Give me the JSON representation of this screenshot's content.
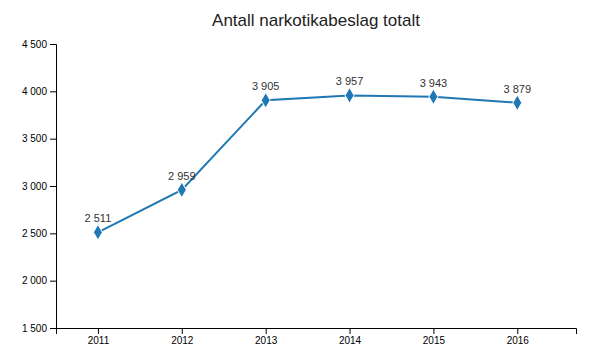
{
  "chart_data": {
    "type": "line",
    "title": "Antall narkotikabeslag totalt",
    "x": [
      2011,
      2012,
      2013,
      2014,
      2015,
      2016
    ],
    "values": [
      2511,
      2959,
      3905,
      3957,
      3943,
      3879
    ],
    "value_labels": [
      "2 511",
      "2 959",
      "3 905",
      "3 957",
      "3 943",
      "3 879"
    ],
    "data_labels": true,
    "marker": "diamond",
    "xlim": [
      2010.5,
      2016.7
    ],
    "xticks": [
      2011,
      2012,
      2013,
      2014,
      2015,
      2016
    ],
    "ylim": [
      1500,
      4500
    ],
    "yticks": [
      {
        "value": 1500,
        "label": "1 500"
      },
      {
        "value": 2000,
        "label": "2 000"
      },
      {
        "value": 2500,
        "label": "2 500"
      },
      {
        "value": 3000,
        "label": "3 000"
      },
      {
        "value": 3500,
        "label": "3 500"
      },
      {
        "value": 4000,
        "label": "4 000"
      },
      {
        "value": 4500,
        "label": "4 500"
      }
    ],
    "grid": false
  }
}
